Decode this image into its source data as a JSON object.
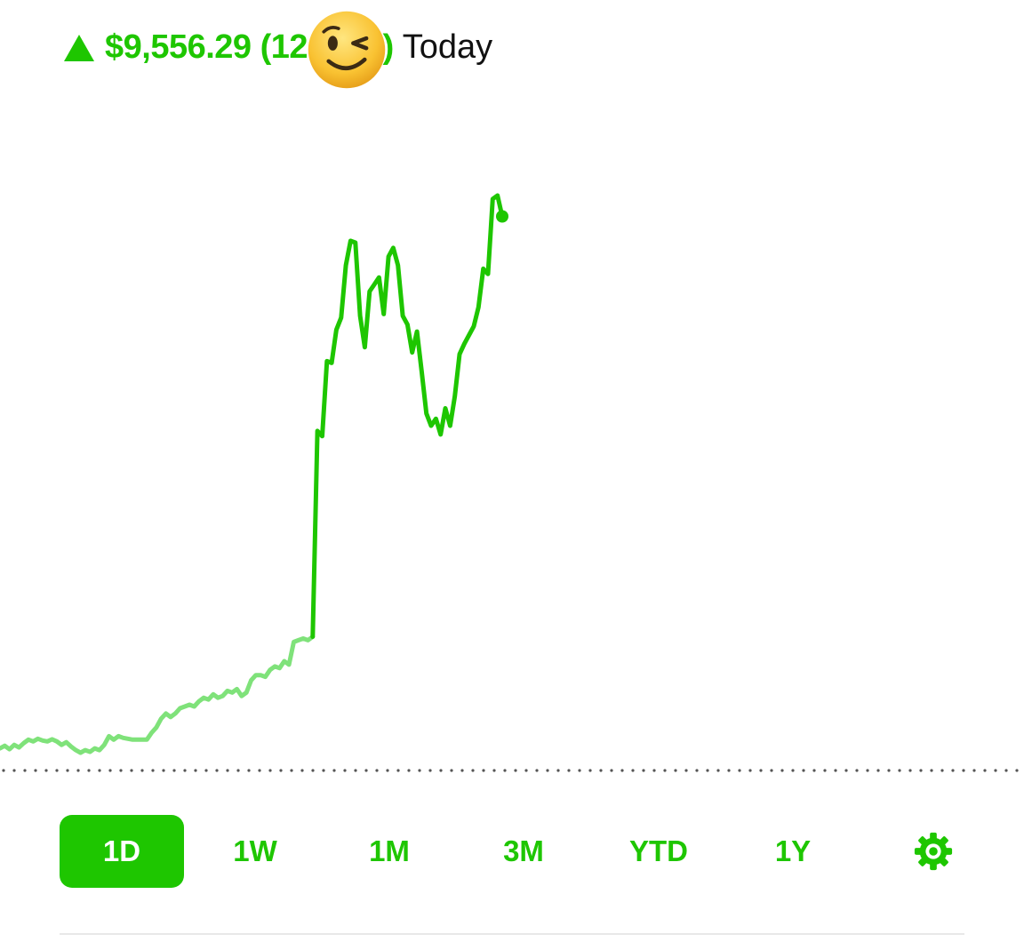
{
  "header": {
    "change_amount": "$9,556.29",
    "change_percent": "(12.45%)",
    "period_label": "Today",
    "direction_icon": "up-triangle-icon",
    "overlay_icon": "winking-face-emoji"
  },
  "colors": {
    "accent": "#1ec600",
    "line_previous": "#7fe27a",
    "baseline_dots": "#555555",
    "text_dark": "#111111"
  },
  "chart_data": {
    "type": "line",
    "title": "",
    "xlabel": "",
    "ylabel": "",
    "grid": false,
    "series": [
      {
        "values": [
          0.3,
          0.45,
          0.25,
          0.5,
          0.35,
          0.6,
          0.8,
          0.7,
          0.85,
          0.75,
          0.7,
          0.82,
          0.7,
          0.5,
          0.65,
          0.4,
          0.2,
          0.05,
          0.2,
          0.1,
          0.3,
          0.2,
          0.5,
          1.0,
          0.8,
          1.0,
          0.9,
          0.85,
          0.8,
          0.8,
          0.8,
          0.8,
          1.2,
          1.5,
          2.0,
          2.3,
          2.1,
          2.3,
          2.6,
          2.7,
          2.8,
          2.7,
          3.0,
          3.2,
          3.1,
          3.4,
          3.2,
          3.3,
          3.6,
          3.5,
          3.7,
          3.3,
          3.5,
          4.2,
          4.5,
          4.5,
          4.4,
          4.8,
          5.0,
          4.9,
          5.3,
          5.1,
          6.4,
          6.5,
          6.6,
          6.5,
          6.7
        ]
      },
      {
        "values": [
          6.7,
          18.5,
          18.2,
          22.5,
          22.4,
          24.3,
          25.0,
          28.0,
          29.4,
          29.3,
          25.1,
          23.3,
          26.5,
          26.9,
          27.3,
          25.2,
          28.5,
          29.0,
          28.0,
          25.1,
          24.6,
          23.0,
          24.2,
          21.9,
          19.5,
          18.8,
          19.2,
          18.3,
          19.8,
          18.8,
          20.5,
          22.9,
          23.5,
          24.0,
          24.5,
          25.6,
          27.8,
          27.5,
          31.8,
          32.0,
          30.8
        ]
      }
    ]
  },
  "ranges": [
    {
      "label": "1D",
      "active": true
    },
    {
      "label": "1W",
      "active": false
    },
    {
      "label": "1M",
      "active": false
    },
    {
      "label": "3M",
      "active": false
    },
    {
      "label": "YTD",
      "active": false
    },
    {
      "label": "1Y",
      "active": false
    }
  ],
  "settings_icon": "gear-icon"
}
